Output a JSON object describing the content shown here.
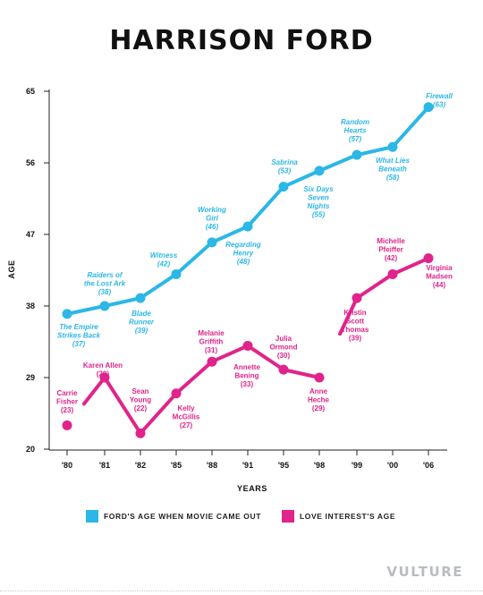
{
  "page": {
    "title": "HARRISON FORD",
    "brand": "VULTURE"
  },
  "colors": {
    "ford": "#2cb7e6",
    "love": "#e0248b",
    "axis": "#222222",
    "text": "#111111"
  },
  "chart_data": {
    "type": "line",
    "title": "HARRISON FORD",
    "xlabel": "YEARS",
    "ylabel": "AGE",
    "categories": [
      "'80",
      "'81",
      "'82",
      "'85",
      "'88",
      "'91",
      "'95",
      "'98",
      "'99",
      "'00",
      "'06"
    ],
    "yticks": [
      20,
      29,
      38,
      47,
      56,
      65
    ],
    "ylim": [
      20,
      65
    ],
    "grid": false,
    "legend_position": "bottom",
    "series": [
      {
        "name": "FORD'S AGE WHEN MOVIE CAME OUT",
        "color": "#2cb7e6",
        "values": [
          37,
          38,
          39,
          42,
          46,
          48,
          53,
          55,
          57,
          58,
          63
        ],
        "labels": [
          [
            "The Empire",
            "Strikes Back",
            "(37)"
          ],
          [
            "Raiders of",
            "the Lost Ark",
            "(38)"
          ],
          [
            "Blade",
            "Runner",
            "(39)"
          ],
          [
            "Witness",
            "(42)"
          ],
          [
            "Working",
            "Girl",
            "(46)"
          ],
          [
            "Regarding",
            "Henry",
            "(48)"
          ],
          [
            "Sabrina",
            "(53)"
          ],
          [
            "Six Days",
            "Seven",
            "Nights",
            "(55)"
          ],
          [
            "Random",
            "Hearts",
            "(57)"
          ],
          [
            "What Lies",
            "Beneath",
            "(58)"
          ],
          [
            "Firewall",
            "(63)"
          ]
        ]
      },
      {
        "name": "LOVE INTEREST'S AGE",
        "color": "#e0248b",
        "values": [
          23,
          29,
          22,
          27,
          31,
          33,
          30,
          29,
          39,
          42,
          44
        ],
        "labels": [
          [
            "Carrie",
            "Fisher",
            "(23)"
          ],
          [
            "Karen Allen",
            "(29)"
          ],
          [
            "Sean",
            "Young",
            "(22)"
          ],
          [
            "Kelly",
            "McGillis",
            "(27)"
          ],
          [
            "Melanie",
            "Griffith",
            "(31)"
          ],
          [
            "Annette",
            "Bening",
            "(33)"
          ],
          [
            "Julia",
            "Ormond",
            "(30)"
          ],
          [
            "Anne",
            "Heche",
            "(29)"
          ],
          [
            "Kristin",
            "Scott",
            "Thomas",
            "(39)"
          ],
          [
            "Michelle",
            "Pfeiffer",
            "(42)"
          ],
          [
            "Virginia",
            "Madsen",
            "(44)"
          ]
        ]
      }
    ]
  }
}
